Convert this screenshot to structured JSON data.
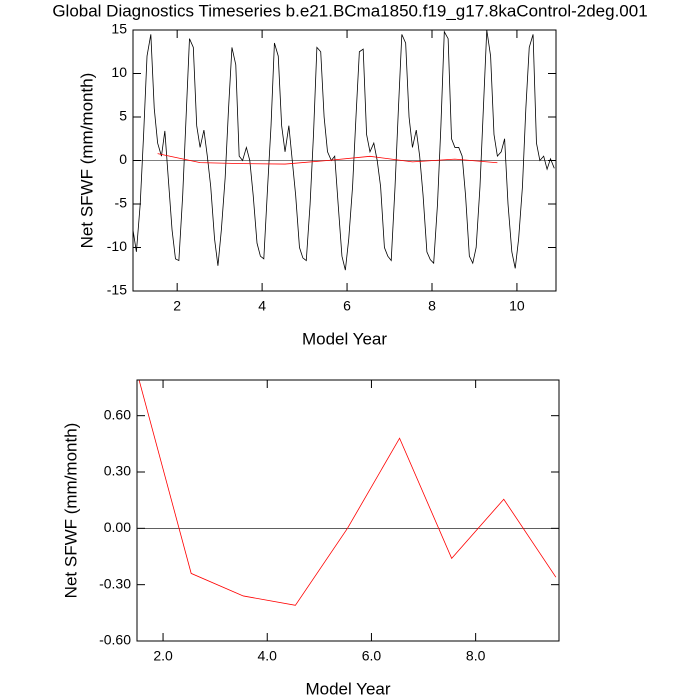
{
  "chart_data": [
    {
      "type": "line",
      "title": "Global Diagnostics Timeseries b.e21.BCma1850.f19_g17.8kaControl-2deg.001",
      "xlabel": "Model Year",
      "ylabel": "Net SFWF (mm/month)",
      "xlim": [
        0.96,
        10.92
      ],
      "xticks": [
        2,
        4,
        6,
        8,
        10
      ],
      "ylim": [
        -15,
        15
      ],
      "yticks": [
        -15,
        -10,
        -5,
        0,
        5,
        10,
        15
      ],
      "reference_line": 0,
      "series": [
        {
          "color": "#000000",
          "x": [
            0.96,
            1.04,
            1.13,
            1.21,
            1.29,
            1.38,
            1.46,
            1.54,
            1.63,
            1.71,
            1.79,
            1.88,
            1.96,
            2.04,
            2.13,
            2.21,
            2.29,
            2.38,
            2.46,
            2.54,
            2.63,
            2.71,
            2.79,
            2.88,
            2.96,
            3.04,
            3.13,
            3.21,
            3.29,
            3.38,
            3.46,
            3.54,
            3.63,
            3.71,
            3.79,
            3.88,
            3.96,
            4.04,
            4.13,
            4.21,
            4.29,
            4.38,
            4.46,
            4.54,
            4.63,
            4.71,
            4.79,
            4.88,
            4.96,
            5.04,
            5.13,
            5.21,
            5.29,
            5.38,
            5.46,
            5.54,
            5.63,
            5.71,
            5.79,
            5.88,
            5.96,
            6.04,
            6.13,
            6.21,
            6.29,
            6.38,
            6.46,
            6.54,
            6.63,
            6.71,
            6.79,
            6.88,
            6.96,
            7.04,
            7.13,
            7.21,
            7.29,
            7.38,
            7.46,
            7.54,
            7.63,
            7.71,
            7.79,
            7.88,
            7.96,
            8.04,
            8.13,
            8.21,
            8.29,
            8.38,
            8.46,
            8.54,
            8.63,
            8.71,
            8.79,
            8.88,
            8.96,
            9.04,
            9.13,
            9.21,
            9.29,
            9.38,
            9.46,
            9.54,
            9.63,
            9.71,
            9.79,
            9.88,
            9.96,
            10.04,
            10.13,
            10.21,
            10.29,
            10.38,
            10.46,
            10.54,
            10.63,
            10.71,
            10.79,
            10.88
          ],
          "values": [
            -8,
            -10.5,
            -5,
            3,
            12,
            14.5,
            6,
            2,
            0.5,
            3.4,
            -2,
            -8,
            -11.3,
            -11.5,
            -4,
            5,
            14,
            13,
            4,
            1.5,
            3.5,
            0.5,
            -3,
            -9,
            -12.1,
            -8,
            -2,
            6,
            13,
            11,
            0.5,
            0,
            1.5,
            0,
            -4,
            -9.5,
            -11,
            -11.3,
            -3,
            4,
            13.5,
            12,
            4,
            1,
            4,
            0,
            -4,
            -10,
            -11.2,
            -11.5,
            -5,
            3,
            13,
            12.5,
            5,
            1,
            0,
            0.5,
            -5,
            -11,
            -12.6,
            -9,
            -3,
            5,
            12.5,
            12.8,
            3,
            1,
            2,
            0,
            -3,
            -10,
            -11,
            -11.5,
            -3,
            6,
            14.5,
            13.5,
            5,
            1.5,
            3.5,
            0.5,
            -4,
            -10.5,
            -11.4,
            -11.8,
            -5,
            4,
            14.8,
            14,
            2.5,
            1.5,
            1.5,
            0.5,
            -4,
            -11,
            -11.8,
            -10,
            -3,
            6,
            15,
            12,
            3,
            0.5,
            1,
            2.5,
            -5,
            -10.5,
            -12.4,
            -9,
            -3,
            6,
            13,
            14.5,
            2,
            0,
            0.5,
            -1,
            0.2,
            -0.9
          ]
        },
        {
          "color": "#ff0000",
          "x": [
            1.54,
            2.54,
            3.54,
            4.54,
            5.54,
            6.54,
            7.54,
            8.54,
            9.54
          ],
          "values": [
            0.79,
            -0.24,
            -0.36,
            -0.41,
            0.0,
            0.48,
            -0.16,
            0.155,
            -0.26
          ]
        }
      ]
    },
    {
      "type": "line",
      "xlabel": "Model Year",
      "ylabel": "Net SFWF (mm/month)",
      "xlim": [
        1.5,
        9.6
      ],
      "xticks": [
        {
          "value": 2,
          "label": "2.0"
        },
        {
          "value": 4,
          "label": "4.0"
        },
        {
          "value": 6,
          "label": "6.0"
        },
        {
          "value": 8,
          "label": "8.0"
        }
      ],
      "ylim": [
        -0.6,
        0.79
      ],
      "yticks": [
        {
          "value": -0.6,
          "label": "-0.60"
        },
        {
          "value": -0.3,
          "label": "-0.30"
        },
        {
          "value": 0,
          "label": "0.00"
        },
        {
          "value": 0.3,
          "label": "0.30"
        },
        {
          "value": 0.6,
          "label": "0.60"
        }
      ],
      "reference_line": 0,
      "series": [
        {
          "color": "#ff0000",
          "x": [
            1.54,
            2.54,
            3.54,
            4.54,
            5.54,
            6.54,
            7.54,
            8.54,
            9.54
          ],
          "values": [
            0.79,
            -0.24,
            -0.36,
            -0.41,
            0.0,
            0.48,
            -0.16,
            0.155,
            -0.26
          ]
        }
      ]
    }
  ]
}
